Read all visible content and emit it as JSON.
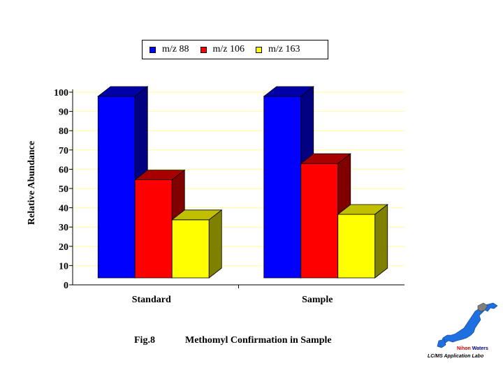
{
  "chart_data": {
    "type": "bar",
    "categories": [
      "Standard",
      "Sample"
    ],
    "series": [
      {
        "name": "m/z 88",
        "values": [
          100,
          100
        ],
        "color": "#0000ff",
        "side": "#000080",
        "top": "#0000a8"
      },
      {
        "name": "m/z 106",
        "values": [
          54,
          63
        ],
        "color": "#ff0000",
        "side": "#800000",
        "top": "#a80000"
      },
      {
        "name": "m/z 163",
        "values": [
          32,
          35
        ],
        "color": "#ffff00",
        "side": "#808000",
        "top": "#c0c000"
      }
    ],
    "title": "",
    "xlabel": "",
    "ylabel": "Relative Abundance",
    "ylim": [
      0,
      100
    ],
    "yticks": [
      0,
      10,
      20,
      30,
      40,
      50,
      60,
      70,
      80,
      90,
      100
    ],
    "grid": true,
    "grid_color": "#ffff99",
    "legend_position": "top-center"
  },
  "caption": {
    "figure": "Fig.8",
    "text": "Methomyl Confirmation in Sample"
  },
  "logo": {
    "brand_a": "Nihon",
    "brand_b": "Waters",
    "subtitle": "LC/MS Application Labo",
    "brand_a_color": "#cc0000",
    "brand_b_color": "#000080"
  }
}
